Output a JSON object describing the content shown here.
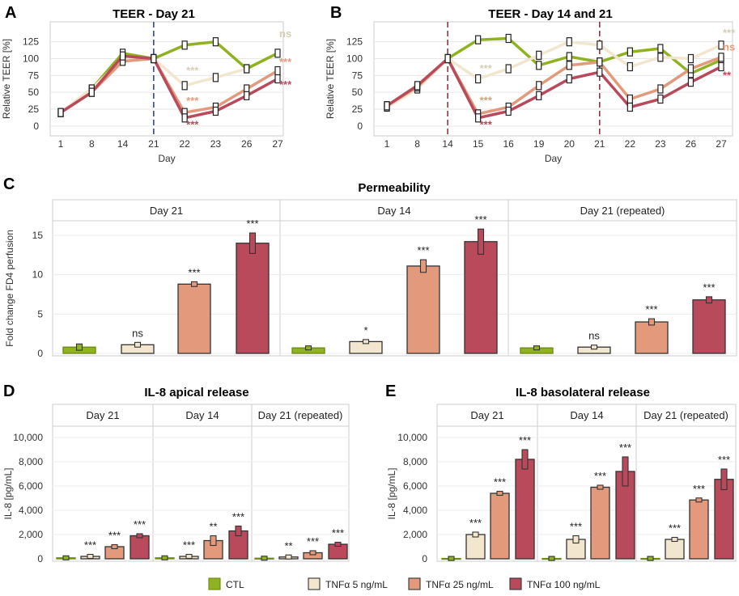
{
  "colors": {
    "CTL": "#8fb320",
    "T5": "#f3e6cf",
    "T25": "#e39a7c",
    "T100": "#b84a5c"
  },
  "legend": [
    {
      "key": "CTL",
      "label": "CTL"
    },
    {
      "key": "T5",
      "label": "TNFα 5 ng/mL"
    },
    {
      "key": "T25",
      "label": "TNFα 25 ng/mL"
    },
    {
      "key": "T100",
      "label": "TNFα 100 ng/mL"
    }
  ],
  "chart_data": [
    {
      "id": "A",
      "panel_label": "A",
      "type": "line",
      "title": "TEER - Day 21",
      "xlabel": "Day",
      "ylabel": "Relative TEER [%]",
      "categories": [
        "1",
        "8",
        "14",
        "21",
        "22",
        "23",
        "26",
        "27"
      ],
      "yticks": [
        0,
        25,
        50,
        75,
        100,
        125
      ],
      "ylim": [
        -5,
        145
      ],
      "vlines": [
        {
          "at": "21",
          "color": "#2a3a8a"
        }
      ],
      "series": [
        {
          "key": "CTL",
          "values": [
            20,
            55,
            108,
            100,
            120,
            125,
            85,
            108
          ]
        },
        {
          "key": "T5",
          "values": [
            20,
            55,
            100,
            100,
            60,
            72,
            85,
            null
          ]
        },
        {
          "key": "T25",
          "values": [
            20,
            50,
            96,
            100,
            20,
            28,
            55,
            82
          ]
        },
        {
          "key": "T100",
          "values": [
            20,
            50,
            104,
            100,
            12,
            22,
            45,
            70
          ]
        }
      ],
      "annotations": [
        {
          "text": "ns",
          "at": "27",
          "y": 132,
          "key": "T5"
        },
        {
          "text": "***",
          "at": "22",
          "y": 77,
          "key": "T5"
        },
        {
          "text": "***",
          "at": "27",
          "y": 90,
          "key": "T25"
        },
        {
          "text": "***",
          "at": "22",
          "y": 32,
          "key": "T25"
        },
        {
          "text": "***",
          "at": "27",
          "y": 56,
          "key": "T100"
        },
        {
          "text": "***",
          "at": "22",
          "y": -3,
          "key": "T100"
        }
      ]
    },
    {
      "id": "B",
      "panel_label": "B",
      "type": "line",
      "title": "TEER - Day 14 and 21",
      "xlabel": "Day",
      "ylabel": "Relative TEER [%]",
      "categories": [
        "1",
        "8",
        "14",
        "15",
        "16",
        "19",
        "20",
        "21",
        "22",
        "23",
        "26",
        "27"
      ],
      "yticks": [
        0,
        25,
        50,
        75,
        100,
        125
      ],
      "ylim": [
        -5,
        145
      ],
      "vlines": [
        {
          "at": "14",
          "color": "#8a2a3a"
        },
        {
          "at": "21",
          "color": "#8a2a3a"
        }
      ],
      "series": [
        {
          "key": "CTL",
          "values": [
            30,
            58,
            100,
            128,
            130,
            90,
            103,
            95,
            110,
            115,
            78,
            98
          ]
        },
        {
          "key": "T5",
          "values": [
            28,
            55,
            100,
            70,
            85,
            105,
            125,
            120,
            88,
            102,
            100,
            120
          ]
        },
        {
          "key": "T25",
          "values": [
            30,
            58,
            100,
            18,
            28,
            60,
            90,
            95,
            40,
            55,
            85,
            102
          ]
        },
        {
          "key": "T100",
          "values": [
            30,
            60,
            100,
            12,
            22,
            45,
            70,
            80,
            28,
            40,
            65,
            88
          ]
        }
      ],
      "annotations": [
        {
          "text": "***",
          "at": "27",
          "y": 133,
          "key": "T5"
        },
        {
          "text": "ns",
          "at": "27",
          "y": 112,
          "key": "T25"
        },
        {
          "text": "**",
          "at": "27",
          "y": 70,
          "key": "T100"
        },
        {
          "text": "***",
          "at": "15",
          "y": 80,
          "key": "T5"
        },
        {
          "text": "***",
          "at": "15",
          "y": 33,
          "key": "T25"
        },
        {
          "text": "***",
          "at": "15",
          "y": -3,
          "key": "T100"
        }
      ]
    },
    {
      "id": "C",
      "panel_label": "C",
      "type": "bar",
      "title": "Permeability",
      "ylabel": "Fold change FD4 perfusion",
      "yticks": [
        0,
        5,
        10,
        15
      ],
      "ylim": [
        0,
        18.5
      ],
      "yformat": "plain",
      "groups": [
        {
          "label": "Day 21",
          "values": [
            0.8,
            1.1,
            8.8,
            14.0
          ],
          "errors": [
            0.4,
            0.3,
            0.3,
            1.3
          ],
          "sig": [
            "",
            "ns",
            "***",
            "***"
          ]
        },
        {
          "label": "Day 14",
          "values": [
            0.7,
            1.5,
            11.1,
            14.2
          ],
          "errors": [
            0.2,
            0.2,
            0.8,
            1.6
          ],
          "sig": [
            "",
            "*",
            "***",
            "***"
          ]
        },
        {
          "label": "Day 21 (repeated)",
          "values": [
            0.7,
            0.8,
            4.0,
            6.8
          ],
          "errors": [
            0.1,
            0.15,
            0.4,
            0.4
          ],
          "sig": [
            "",
            "ns",
            "***",
            "***"
          ]
        }
      ]
    },
    {
      "id": "D",
      "panel_label": "D",
      "type": "bar",
      "title": "IL-8 apical release",
      "ylabel": "IL-8 [pg/mL]",
      "yticks": [
        0,
        2000,
        4000,
        6000,
        8000,
        10000
      ],
      "ylim": [
        0,
        11000
      ],
      "yformat": "thousands",
      "groups": [
        {
          "label": "Day 21",
          "values": [
            80,
            200,
            1000,
            1900
          ],
          "errors": [
            20,
            120,
            80,
            150
          ],
          "sig": [
            "",
            "***",
            "***",
            "***"
          ]
        },
        {
          "label": "Day 14",
          "values": [
            80,
            200,
            1500,
            2300
          ],
          "errors": [
            20,
            100,
            400,
            400
          ],
          "sig": [
            "",
            "***",
            "**",
            "***"
          ]
        },
        {
          "label": "Day 21 (repeated)",
          "values": [
            50,
            150,
            500,
            1200
          ],
          "errors": [
            10,
            80,
            120,
            80
          ],
          "sig": [
            "",
            "**",
            "***",
            "***"
          ]
        }
      ]
    },
    {
      "id": "E",
      "panel_label": "E",
      "type": "bar",
      "title": "IL-8 basolateral release",
      "ylabel": "IL-8 [pg/mL]",
      "yticks": [
        0,
        2000,
        4000,
        6000,
        8000,
        10000
      ],
      "ylim": [
        0,
        11000
      ],
      "yformat": "thousands",
      "groups": [
        {
          "label": "Day 21",
          "values": [
            30,
            2000,
            5400,
            8200
          ],
          "errors": [
            10,
            200,
            150,
            800
          ],
          "sig": [
            "",
            "***",
            "***",
            "***"
          ]
        },
        {
          "label": "Day 14",
          "values": [
            30,
            1600,
            5900,
            7200
          ],
          "errors": [
            10,
            300,
            100,
            1200
          ],
          "sig": [
            "",
            "***",
            "***",
            "***"
          ]
        },
        {
          "label": "Day 21 (repeated)",
          "values": [
            30,
            1600,
            4850,
            6550
          ],
          "errors": [
            10,
            60,
            150,
            850
          ],
          "sig": [
            "",
            "***",
            "***",
            "***"
          ]
        }
      ]
    }
  ]
}
